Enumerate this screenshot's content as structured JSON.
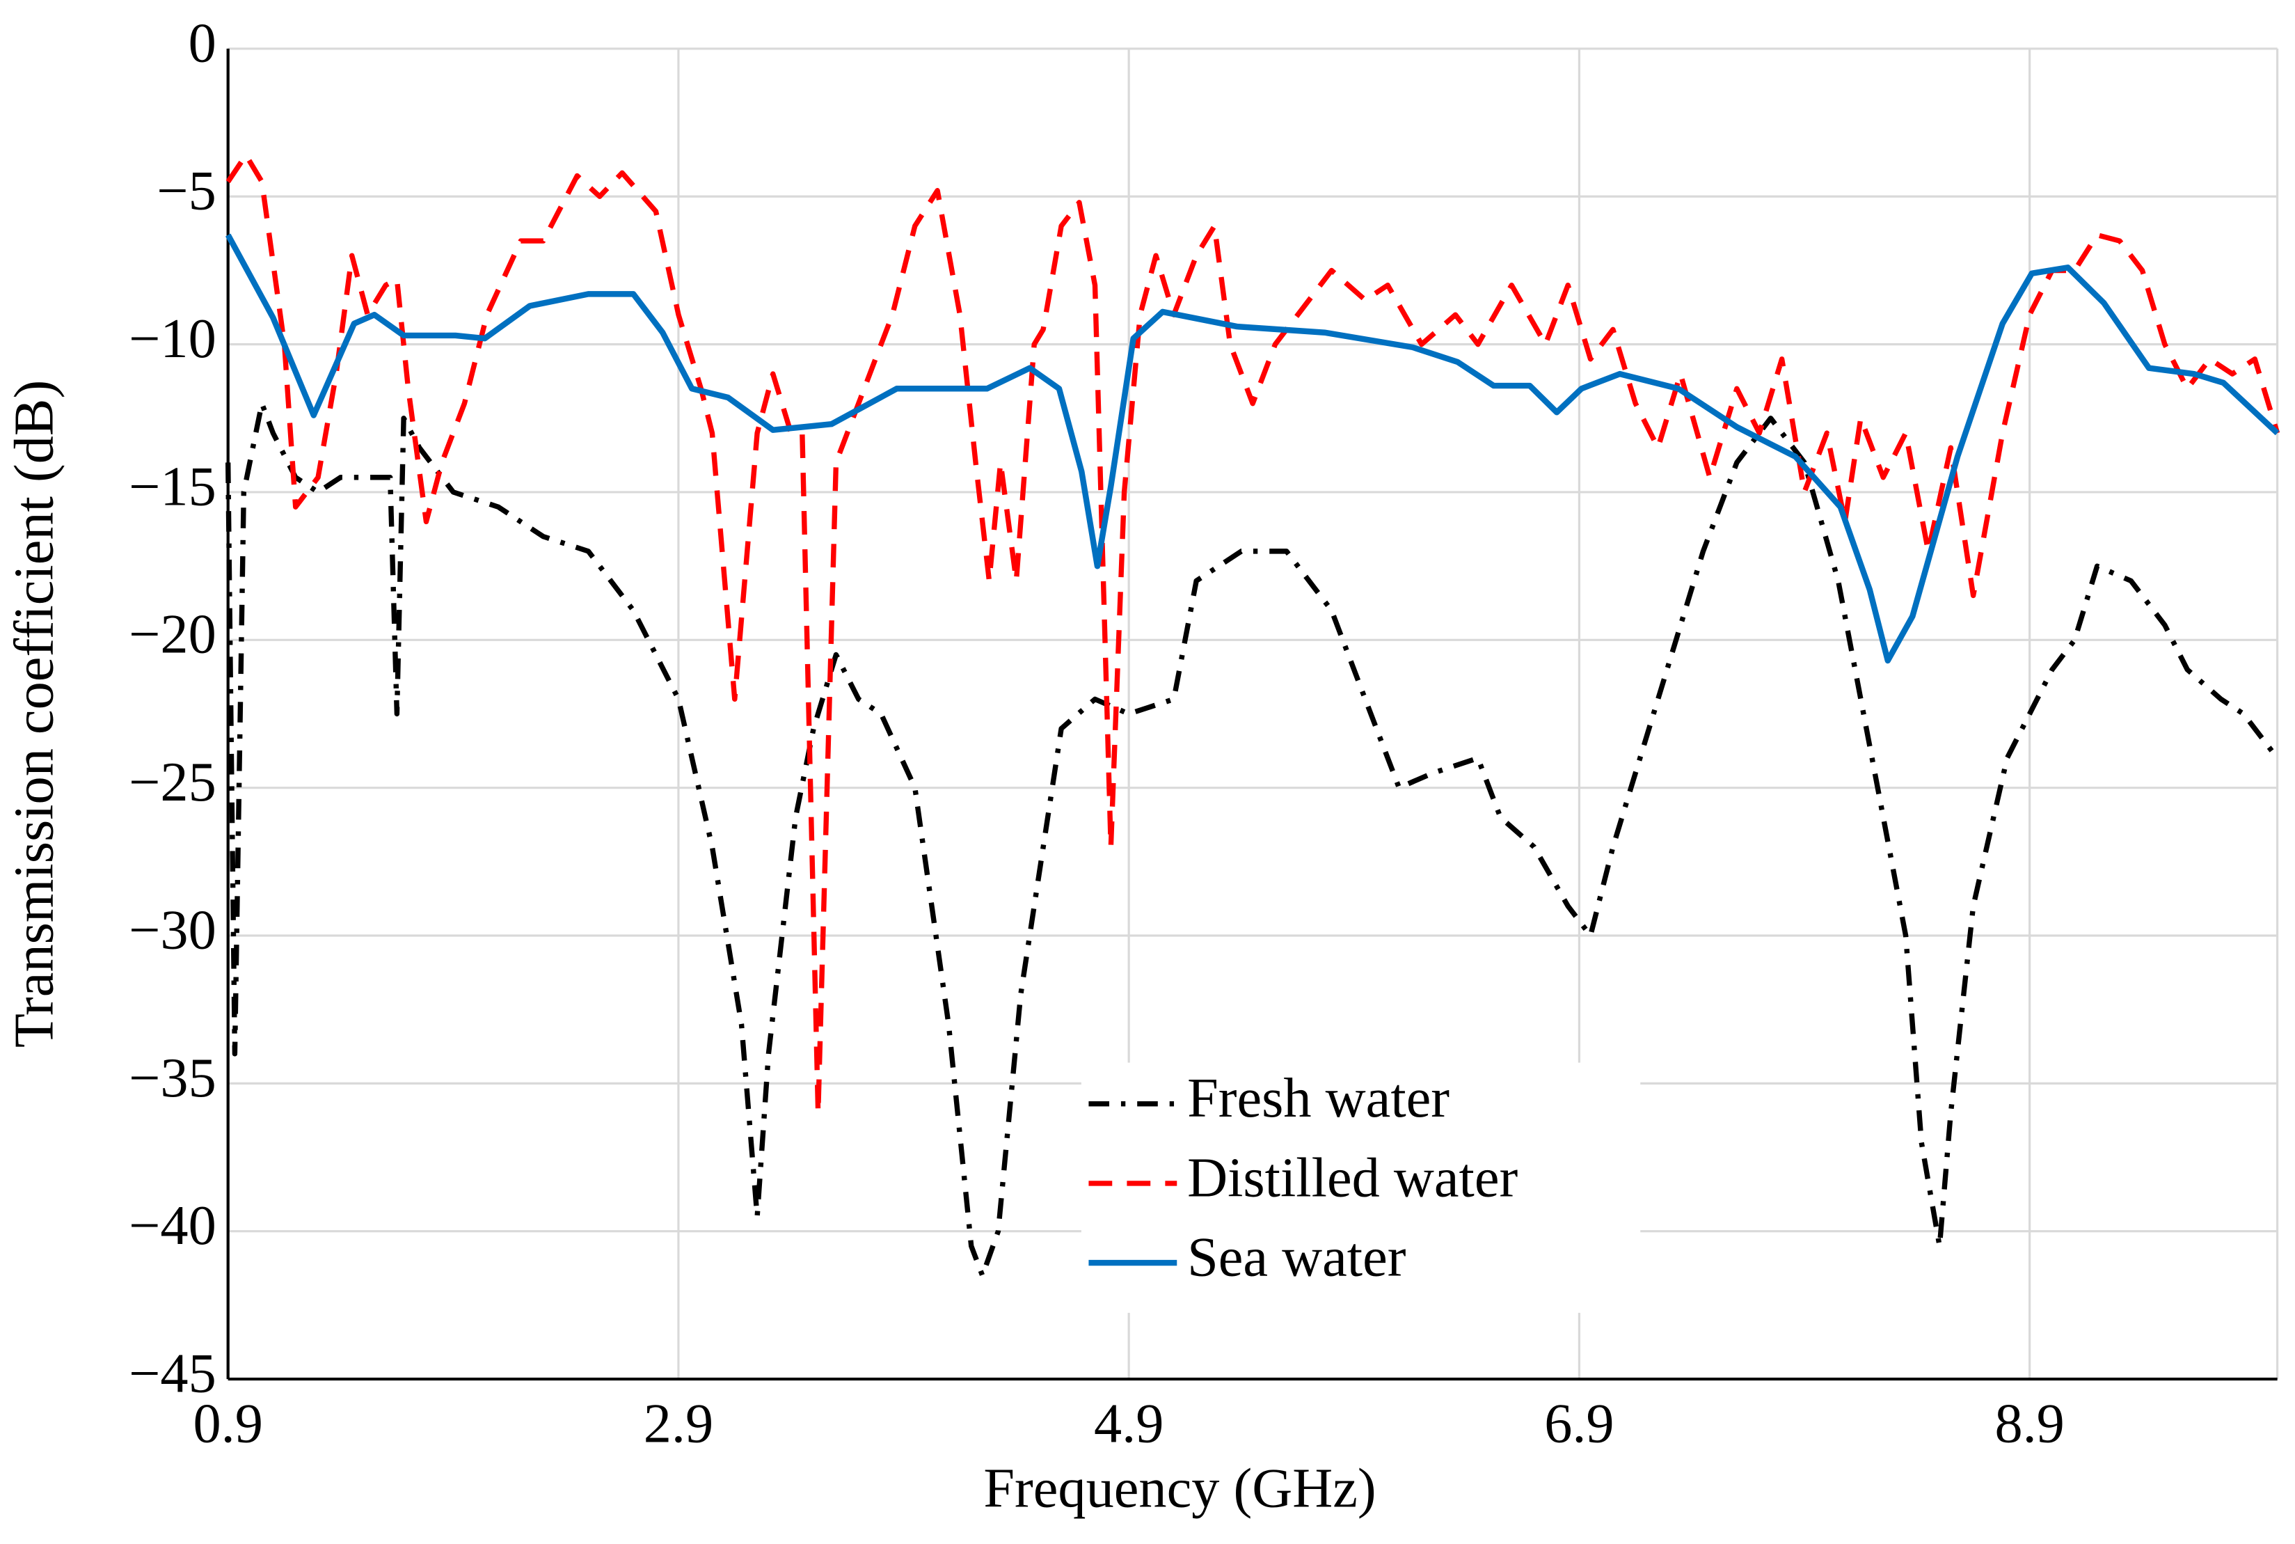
{
  "chart_data": {
    "type": "line",
    "xlabel": "Frequency (GHz)",
    "ylabel": "Transmission coefficient (dB)",
    "xlim": [
      0.9,
      10.0
    ],
    "ylim": [
      -45,
      0
    ],
    "xticks": [
      0.9,
      2.9,
      4.9,
      6.9,
      8.9
    ],
    "yticks": [
      0,
      {
        "value": -5,
        "label": "−5"
      },
      {
        "value": -10,
        "label": "−10"
      },
      {
        "value": -15,
        "label": "−15"
      },
      {
        "value": -20,
        "label": "−20"
      },
      {
        "value": -25,
        "label": "−25"
      },
      {
        "value": -30,
        "label": "−30"
      },
      {
        "value": -35,
        "label": "−35"
      },
      {
        "value": -40,
        "label": "−40"
      },
      {
        "value": -45,
        "label": "−45"
      }
    ],
    "grid": true,
    "legend": "bottom-center",
    "series": [
      {
        "name": "Fresh water",
        "color": "#000000",
        "linestyle": "dashdot",
        "x": [
          0.9,
          0.93,
          0.97,
          1.05,
          1.1,
          1.2,
          1.3,
          1.4,
          1.55,
          1.62,
          1.65,
          1.68,
          1.75,
          1.9,
          2.1,
          2.3,
          2.5,
          2.7,
          2.9,
          3.05,
          3.18,
          3.25,
          3.3,
          3.42,
          3.5,
          3.6,
          3.7,
          3.8,
          3.95,
          4.1,
          4.2,
          4.25,
          4.32,
          4.42,
          4.6,
          4.75,
          4.9,
          5.1,
          5.2,
          5.4,
          5.6,
          5.8,
          5.95,
          6.1,
          6.25,
          6.45,
          6.55,
          6.7,
          6.85,
          6.95,
          7.05,
          7.25,
          7.45,
          7.6,
          7.75,
          7.9,
          8.05,
          8.2,
          8.35,
          8.42,
          8.5,
          8.55,
          8.65,
          8.8,
          9.0,
          9.1,
          9.2,
          9.35,
          9.5,
          9.6,
          9.75,
          9.85,
          10.0
        ],
        "values": [
          -14,
          -34,
          -15,
          -12,
          -13,
          -14.5,
          -15,
          -14.5,
          -14.5,
          -14.5,
          -22.5,
          -12.5,
          -13.5,
          -15,
          -15.5,
          -16.5,
          -17,
          -19,
          -22,
          -27,
          -33,
          -39.5,
          -34,
          -26,
          -23,
          -20.5,
          -22,
          -22.5,
          -25,
          -33,
          -40.5,
          -41.5,
          -40,
          -32,
          -23,
          -22,
          -22.5,
          -22,
          -18,
          -17,
          -17,
          -19,
          -22,
          -25,
          -24.5,
          -24,
          -26,
          -27,
          -29,
          -30,
          -27,
          -22,
          -17,
          -14,
          -12.5,
          -14,
          -18,
          -24,
          -30,
          -37,
          -40.5,
          -36,
          -29,
          -24,
          -21,
          -20,
          -17.5,
          -18,
          -19.5,
          -21,
          -22,
          -22.5,
          -24
        ]
      },
      {
        "name": "Distilled water",
        "color": "#ff0000",
        "linestyle": "dashed",
        "x": [
          0.9,
          0.98,
          1.05,
          1.15,
          1.2,
          1.3,
          1.38,
          1.45,
          1.52,
          1.6,
          1.65,
          1.7,
          1.78,
          1.85,
          1.95,
          2.05,
          2.2,
          2.3,
          2.45,
          2.55,
          2.65,
          2.8,
          2.9,
          3.0,
          3.05,
          3.15,
          3.25,
          3.32,
          3.4,
          3.45,
          3.52,
          3.6,
          3.7,
          3.8,
          3.85,
          3.95,
          4.05,
          4.15,
          4.22,
          4.28,
          4.33,
          4.4,
          4.48,
          4.52,
          4.6,
          4.68,
          4.75,
          4.82,
          4.88,
          4.95,
          5.02,
          5.1,
          5.2,
          5.28,
          5.35,
          5.45,
          5.55,
          5.7,
          5.8,
          5.95,
          6.05,
          6.2,
          6.35,
          6.45,
          6.6,
          6.75,
          6.85,
          6.95,
          7.05,
          7.15,
          7.25,
          7.35,
          7.48,
          7.6,
          7.7,
          7.8,
          7.9,
          8.0,
          8.08,
          8.15,
          8.25,
          8.35,
          8.45,
          8.55,
          8.65,
          8.78,
          8.9,
          9.0,
          9.1,
          9.2,
          9.3,
          9.4,
          9.5,
          9.6,
          9.7,
          9.8,
          9.9,
          10.0
        ],
        "values": [
          -4.5,
          -3.6,
          -4.5,
          -10,
          -15.5,
          -14.5,
          -11,
          -7,
          -9,
          -8,
          -7.8,
          -11.5,
          -16,
          -14,
          -12,
          -9,
          -6.5,
          -6.5,
          -4.3,
          -5,
          -4.2,
          -5.5,
          -9,
          -11.5,
          -13,
          -22,
          -13,
          -11,
          -13,
          -13,
          -36,
          -14,
          -12,
          -10,
          -9,
          -6,
          -4.8,
          -9,
          -14,
          -18,
          -14,
          -18,
          -10,
          -9.5,
          -6,
          -5.2,
          -8,
          -27,
          -15,
          -9,
          -7,
          -9,
          -7,
          -6,
          -10,
          -12,
          -10,
          -8.5,
          -7.5,
          -8.5,
          -8,
          -10,
          -9,
          -10,
          -8,
          -10,
          -8,
          -10.5,
          -9.5,
          -12,
          -13.5,
          -11,
          -14.5,
          -11.5,
          -13,
          -10.5,
          -15,
          -13,
          -16,
          -12.5,
          -14.5,
          -13,
          -17,
          -13.5,
          -18.5,
          -13,
          -9,
          -7.5,
          -7.5,
          -6.3,
          -6.5,
          -7.5,
          -10,
          -11.5,
          -10.5,
          -11,
          -10.5,
          -13
        ]
      },
      {
        "name": "Sea water",
        "color": "#0070c0",
        "linestyle": "solid",
        "x": [
          0.9,
          1.1,
          1.28,
          1.46,
          1.55,
          1.68,
          1.91,
          2.04,
          2.24,
          2.5,
          2.7,
          2.83,
          2.96,
          3.12,
          3.32,
          3.58,
          3.87,
          4.27,
          4.46,
          4.59,
          4.69,
          4.76,
          4.82,
          4.92,
          5.05,
          5.38,
          5.77,
          6.16,
          6.36,
          6.52,
          6.68,
          6.8,
          6.91,
          7.08,
          7.34,
          7.6,
          7.86,
          8.06,
          8.19,
          8.27,
          8.38,
          8.58,
          8.78,
          8.91,
          9.07,
          9.23,
          9.43,
          9.63,
          9.76,
          10.0
        ],
        "values": [
          -6.3,
          -9.1,
          -12.4,
          -9.3,
          -9.0,
          -9.7,
          -9.7,
          -9.8,
          -8.7,
          -8.3,
          -8.3,
          -9.6,
          -11.5,
          -11.8,
          -12.9,
          -12.7,
          -11.5,
          -11.5,
          -10.8,
          -11.5,
          -14.3,
          -17.5,
          -14.8,
          -9.8,
          -8.9,
          -9.4,
          -9.6,
          -10.1,
          -10.6,
          -11.4,
          -11.4,
          -12.3,
          -11.5,
          -11.0,
          -11.5,
          -12.8,
          -13.8,
          -15.5,
          -18.3,
          -20.7,
          -19.2,
          -13.8,
          -9.3,
          -7.6,
          -7.4,
          -8.6,
          -10.8,
          -11.0,
          -11.3,
          -13.0
        ]
      }
    ]
  }
}
